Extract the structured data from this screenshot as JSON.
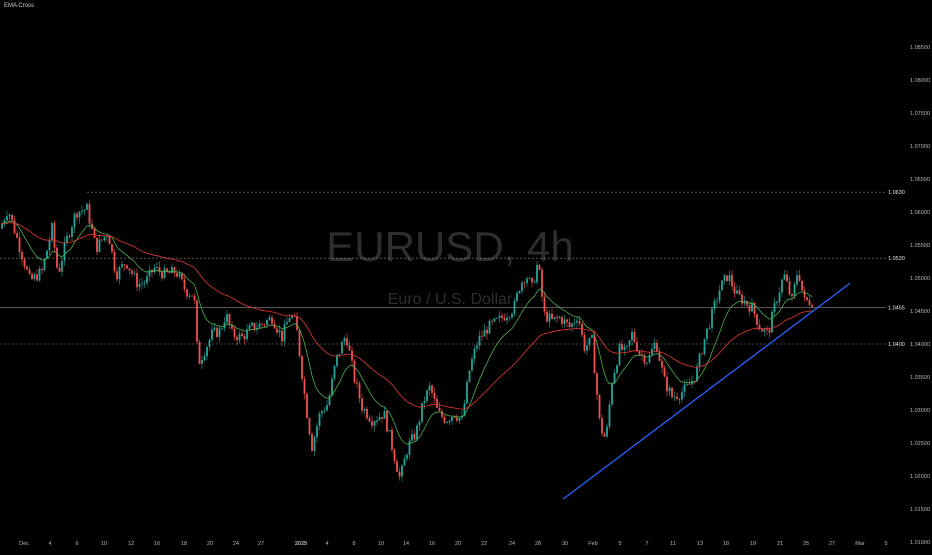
{
  "indicator_label": "EMA Cross",
  "watermark": {
    "symbol": "EURUSD, 4h",
    "description": "Euro / U.S. Dollar"
  },
  "colors": {
    "background": "#000000",
    "candle_up": "#26a69a",
    "candle_down": "#ef5350",
    "ema_fast": "#4caf50",
    "ema_slow": "#e53935",
    "trendline": "#2962ff",
    "price_line": "#8a8a8a",
    "axis_text": "#b8b8b8",
    "watermark": "#2e2e2e"
  },
  "chart_data": {
    "type": "candlestick",
    "title": "",
    "y_range": [
      1.01,
      1.087
    ],
    "y_ticks": [
      "1.08500",
      "1.08000",
      "1.07500",
      "1.07000",
      "1.06500",
      "1.06000",
      "1.05500",
      "1.05000",
      "1.04500",
      "1.04000",
      "1.03500",
      "1.03000",
      "1.02500",
      "1.02000",
      "1.01500",
      "1.01000"
    ],
    "x_ticks": [
      "Dec",
      "4",
      "6",
      "10",
      "12",
      "16",
      "18",
      "20",
      "24",
      "27",
      "2025",
      "4",
      "8",
      "10",
      "14",
      "16",
      "20",
      "22",
      "24",
      "28",
      "30",
      "Feb",
      "5",
      "7",
      "11",
      "13",
      "18",
      "19",
      "21",
      "25",
      "27",
      "Mar",
      "5"
    ],
    "price_labels": [
      "1.0630",
      "1.0530",
      "1.0455",
      "1.0400"
    ],
    "price_levels": [
      1.063,
      1.053,
      1.0455,
      1.04
    ],
    "path": [
      [
        0,
        1.0575
      ],
      [
        8,
        1.0605
      ],
      [
        20,
        1.0545
      ],
      [
        30,
        1.0495
      ],
      [
        42,
        1.051
      ],
      [
        52,
        1.0575
      ],
      [
        58,
        1.0505
      ],
      [
        66,
        1.0555
      ],
      [
        76,
        1.06
      ],
      [
        87,
        1.0605
      ],
      [
        96,
        1.0545
      ],
      [
        108,
        1.057
      ],
      [
        116,
        1.0505
      ],
      [
        126,
        1.0525
      ],
      [
        138,
        1.049
      ],
      [
        146,
        1.0495
      ],
      [
        154,
        1.0515
      ],
      [
        165,
        1.0505
      ],
      [
        176,
        1.051
      ],
      [
        186,
        1.048
      ],
      [
        194,
        1.0475
      ],
      [
        198,
        1.037
      ],
      [
        206,
        1.0395
      ],
      [
        212,
        1.0415
      ],
      [
        220,
        1.042
      ],
      [
        226,
        1.0445
      ],
      [
        232,
        1.0415
      ],
      [
        242,
        1.041
      ],
      [
        252,
        1.0425
      ],
      [
        262,
        1.043
      ],
      [
        272,
        1.044
      ],
      [
        282,
        1.041
      ],
      [
        290,
        1.0445
      ],
      [
        296,
        1.043
      ],
      [
        302,
        1.0355
      ],
      [
        306,
        1.0305
      ],
      [
        312,
        1.0245
      ],
      [
        320,
        1.0295
      ],
      [
        328,
        1.031
      ],
      [
        336,
        1.0375
      ],
      [
        346,
        1.0415
      ],
      [
        354,
        1.035
      ],
      [
        362,
        1.0305
      ],
      [
        372,
        1.0285
      ],
      [
        384,
        1.0295
      ],
      [
        392,
        1.0245
      ],
      [
        400,
        1.0195
      ],
      [
        408,
        1.0245
      ],
      [
        416,
        1.0265
      ],
      [
        424,
        1.0315
      ],
      [
        430,
        1.0335
      ],
      [
        438,
        1.0295
      ],
      [
        446,
        1.0285
      ],
      [
        454,
        1.0295
      ],
      [
        462,
        1.0285
      ],
      [
        470,
        1.0365
      ],
      [
        478,
        1.0405
      ],
      [
        488,
        1.0425
      ],
      [
        498,
        1.0435
      ],
      [
        506,
        1.0445
      ],
      [
        514,
        1.0455
      ],
      [
        520,
        1.049
      ],
      [
        526,
        1.0505
      ],
      [
        532,
        1.0485
      ],
      [
        538,
        1.0525
      ],
      [
        544,
        1.0445
      ],
      [
        552,
        1.0435
      ],
      [
        560,
        1.044
      ],
      [
        570,
        1.0425
      ],
      [
        578,
        1.0445
      ],
      [
        584,
        1.0395
      ],
      [
        592,
        1.0405
      ],
      [
        600,
        1.0275
      ],
      [
        606,
        1.0255
      ],
      [
        612,
        1.0345
      ],
      [
        620,
        1.0395
      ],
      [
        626,
        1.0385
      ],
      [
        632,
        1.0415
      ],
      [
        640,
        1.0385
      ],
      [
        648,
        1.0375
      ],
      [
        656,
        1.0405
      ],
      [
        664,
        1.0345
      ],
      [
        672,
        1.032
      ],
      [
        680,
        1.0325
      ],
      [
        688,
        1.0335
      ],
      [
        696,
        1.0355
      ],
      [
        704,
        1.0405
      ],
      [
        712,
        1.0445
      ],
      [
        720,
        1.0485
      ],
      [
        728,
        1.0505
      ],
      [
        736,
        1.0475
      ],
      [
        744,
        1.0465
      ],
      [
        752,
        1.0455
      ],
      [
        760,
        1.0425
      ],
      [
        768,
        1.0415
      ],
      [
        776,
        1.0465
      ],
      [
        784,
        1.0505
      ],
      [
        792,
        1.0465
      ],
      [
        798,
        1.0515
      ],
      [
        804,
        1.0465
      ],
      [
        812,
        1.0465
      ]
    ],
    "trendline": {
      "from": [
        563,
        1.0165
      ],
      "to": [
        850,
        1.0492
      ]
    }
  }
}
